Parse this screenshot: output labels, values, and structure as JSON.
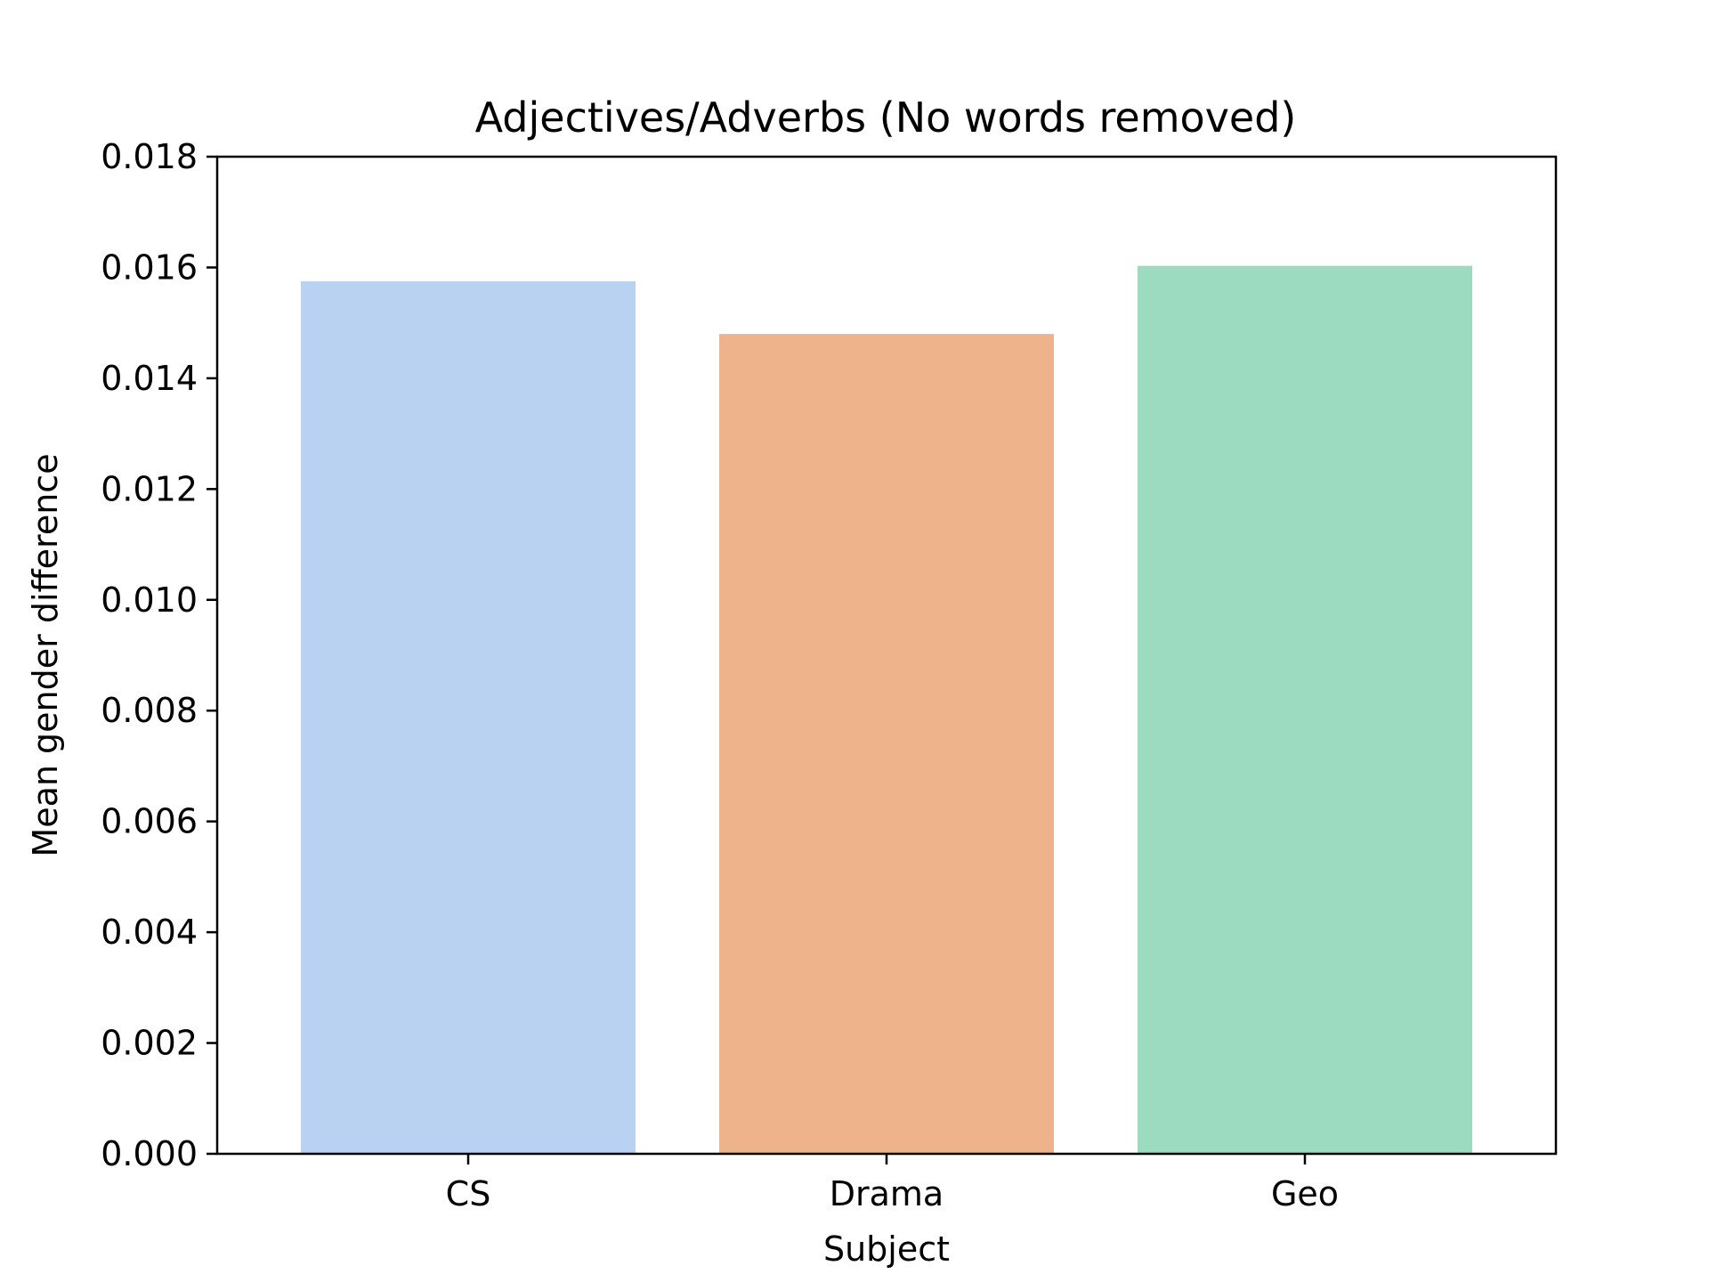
{
  "chart_data": {
    "type": "bar",
    "title": "Adjectives/Adverbs (No words removed)",
    "xlabel": "Subject",
    "ylabel": "Mean gender difference",
    "categories": [
      "CS",
      "Drama",
      "Geo"
    ],
    "values": [
      0.01575,
      0.0148,
      0.01603
    ],
    "colors": [
      "#bad2f2",
      "#eeb38b",
      "#9cdbbf"
    ],
    "ylim": [
      0,
      0.018
    ],
    "yticks": [
      "0.000",
      "0.002",
      "0.004",
      "0.006",
      "0.008",
      "0.010",
      "0.012",
      "0.014",
      "0.016",
      "0.018"
    ],
    "grid": false,
    "legend": "none"
  }
}
